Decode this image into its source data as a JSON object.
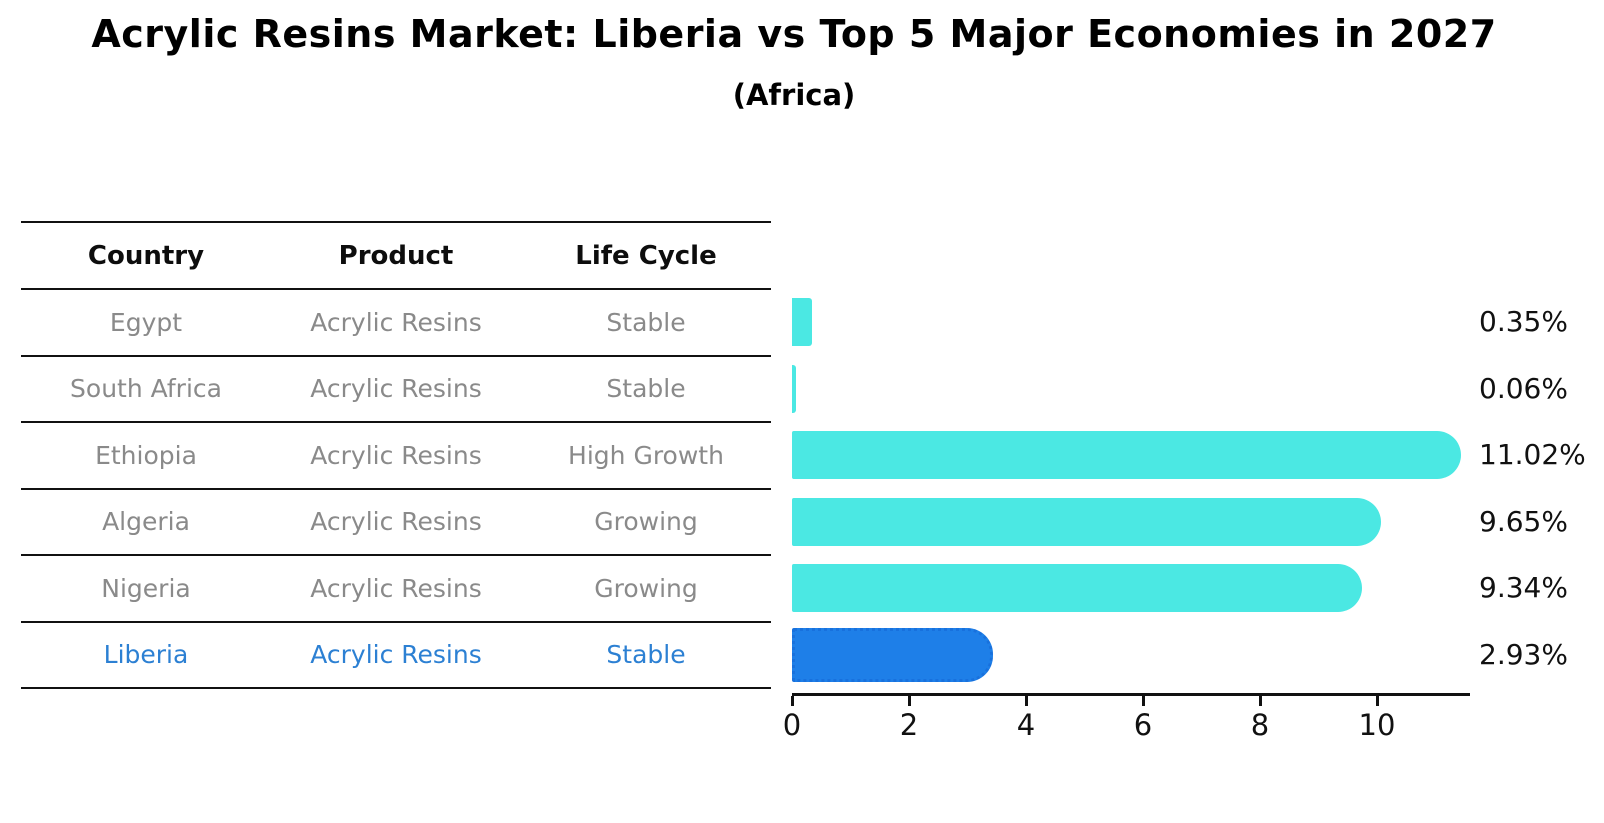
{
  "title": "Acrylic Resins Market: Liberia vs Top 5 Major Economies in 2027",
  "subtitle": "(Africa)",
  "table": {
    "columns": [
      "Country",
      "Product",
      "Life Cycle"
    ]
  },
  "colors": {
    "bar_default": "#4BE8E3",
    "bar_highlight": "#1E7FE8",
    "bar_highlight_border": "#1871DD",
    "row_text": "#8A8A8A",
    "highlight_text": "#2C80D3",
    "header_text": "#0D0D0D",
    "axis_text": "#111111"
  },
  "chart_data": {
    "type": "bar",
    "orientation": "horizontal",
    "title": "Acrylic Resins Market: Liberia vs Top 5 Major Economies in 2027",
    "subtitle": "(Africa)",
    "xlabel": "",
    "ylabel": "",
    "xlim": [
      0,
      11.6
    ],
    "x_ticks": [
      0,
      2,
      4,
      6,
      8,
      10
    ],
    "grid": false,
    "legend": false,
    "value_suffix": "%",
    "categories": [
      "Egypt",
      "South Africa",
      "Ethiopia",
      "Algeria",
      "Nigeria",
      "Liberia"
    ],
    "values": [
      0.35,
      0.06,
      11.02,
      9.65,
      9.34,
      2.93
    ],
    "rows": [
      {
        "country": "Egypt",
        "product": "Acrylic Resins",
        "life_cycle": "Stable",
        "value": 0.35,
        "value_label": "0.35%",
        "highlight": false
      },
      {
        "country": "South Africa",
        "product": "Acrylic Resins",
        "life_cycle": "Stable",
        "value": 0.06,
        "value_label": "0.06%",
        "highlight": false
      },
      {
        "country": "Ethiopia",
        "product": "Acrylic Resins",
        "life_cycle": "High Growth",
        "value": 11.02,
        "value_label": "11.02%",
        "highlight": false
      },
      {
        "country": "Algeria",
        "product": "Acrylic Resins",
        "life_cycle": "Growing",
        "value": 9.65,
        "value_label": "9.65%",
        "highlight": false
      },
      {
        "country": "Nigeria",
        "product": "Acrylic Resins",
        "life_cycle": "Growing",
        "value": 9.34,
        "value_label": "9.34%",
        "highlight": false
      },
      {
        "country": "Liberia",
        "product": "Acrylic Resins",
        "life_cycle": "Stable",
        "value": 2.93,
        "value_label": "2.93%",
        "highlight": true
      }
    ]
  }
}
